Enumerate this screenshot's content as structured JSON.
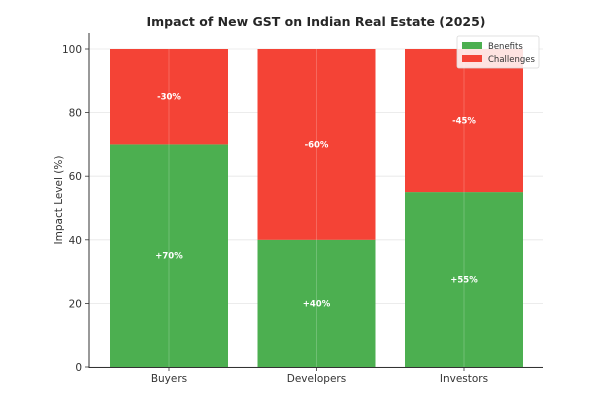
{
  "chart_data": {
    "type": "bar",
    "stacked": true,
    "title": "Impact of New GST on Indian Real Estate (2025)",
    "xlabel": "",
    "ylabel": "Impact Level (%)",
    "categories": [
      "Buyers",
      "Developers",
      "Investors"
    ],
    "series": [
      {
        "name": "Benefits",
        "color": "#4caf50",
        "values": [
          70,
          40,
          55
        ],
        "labels": [
          "+70%",
          "+40%",
          "+55%"
        ]
      },
      {
        "name": "Challenges",
        "color": "#f44336",
        "values": [
          30,
          60,
          45
        ],
        "labels": [
          "-30%",
          "-60%",
          "-45%"
        ]
      }
    ],
    "ylim": [
      0,
      100
    ],
    "yticks": [
      0,
      20,
      40,
      60,
      80,
      100
    ],
    "grid": true,
    "legend": "top-right"
  }
}
